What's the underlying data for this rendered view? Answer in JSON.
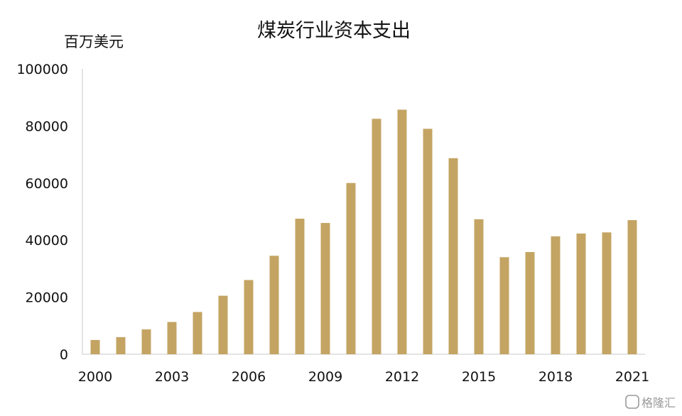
{
  "chart_data": {
    "type": "bar",
    "title": "煤炭行业资本支出",
    "ylabel": "百万美元",
    "xlabel": "",
    "ylim": [
      0,
      100000
    ],
    "yticks": [
      0,
      20000,
      40000,
      60000,
      80000,
      100000
    ],
    "xtick_labels": [
      "2000",
      "2003",
      "2006",
      "2009",
      "2012",
      "2015",
      "2018",
      "2021"
    ],
    "categories": [
      "2000",
      "2001",
      "2002",
      "2003",
      "2004",
      "2005",
      "2006",
      "2007",
      "2008",
      "2009",
      "2010",
      "2011",
      "2012",
      "2013",
      "2014",
      "2015",
      "2016",
      "2017",
      "2018",
      "2019",
      "2020",
      "2021"
    ],
    "values": [
      5000,
      6000,
      8700,
      11300,
      14800,
      20500,
      26000,
      34500,
      47500,
      46000,
      60000,
      82500,
      85700,
      79000,
      68700,
      47300,
      34000,
      35800,
      41300,
      42300,
      42700,
      47000
    ],
    "bar_color": "#C4A463",
    "grid": false,
    "legend": "none"
  },
  "watermark": {
    "text": "格隆汇"
  }
}
